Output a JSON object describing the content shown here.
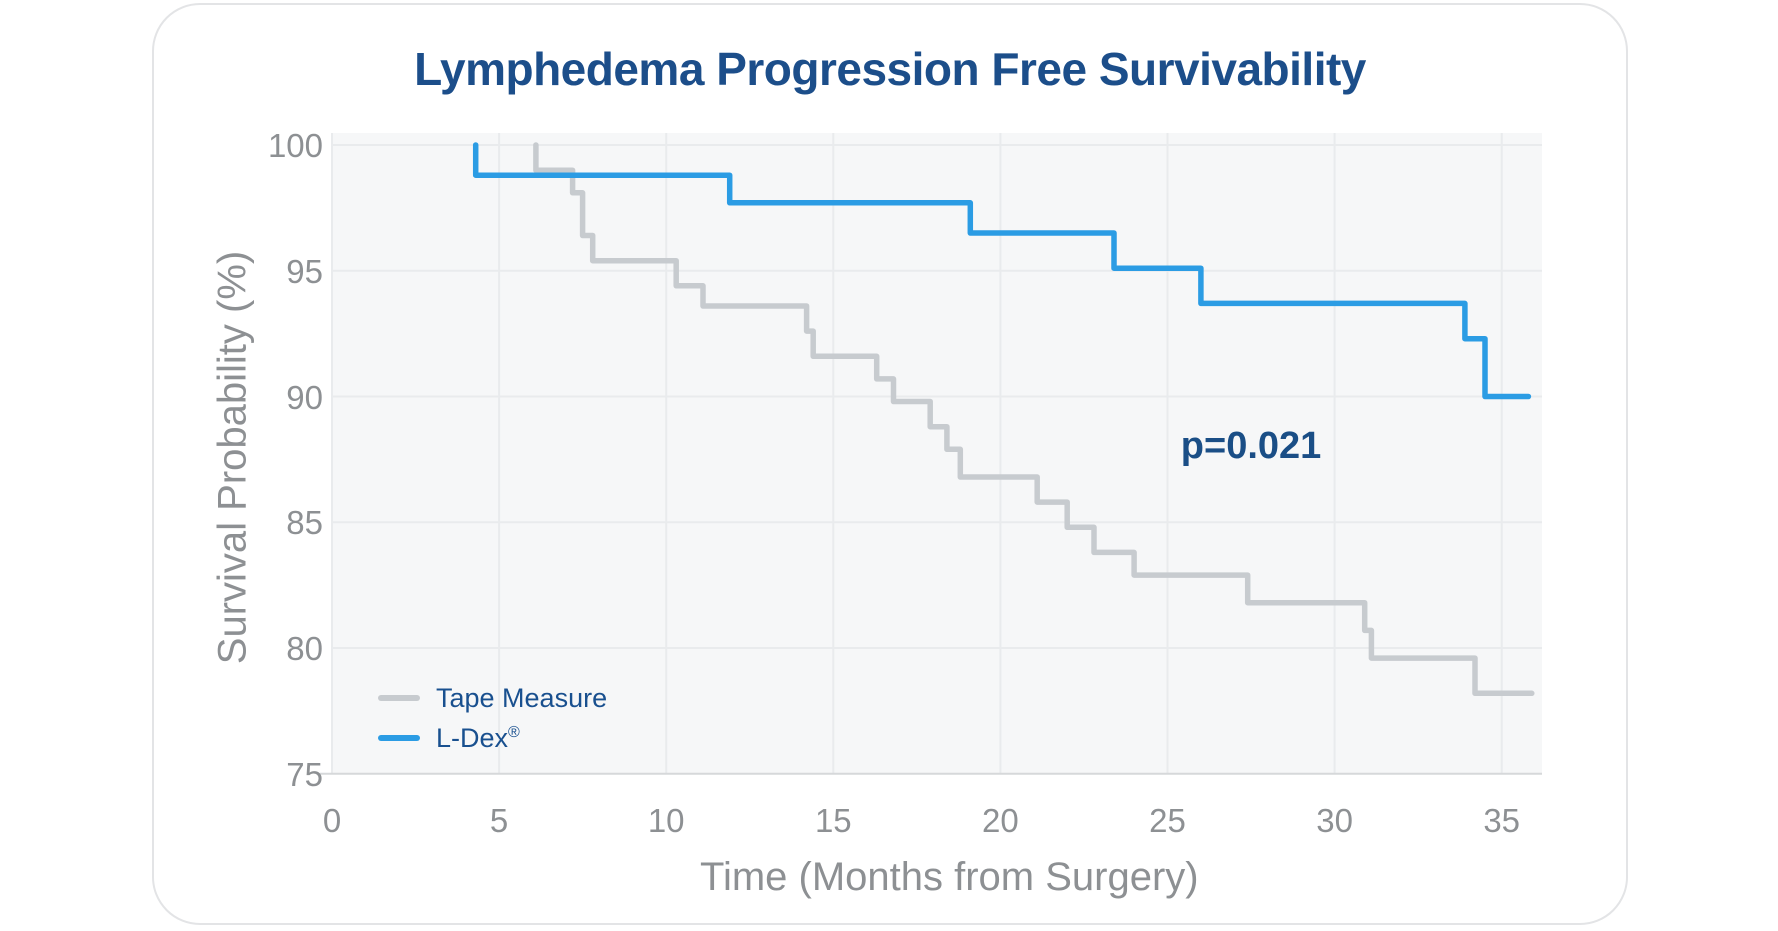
{
  "card": {
    "title": "Lymphedema Progression Free Survivability"
  },
  "colors": {
    "title_navy": "#1C4E8A",
    "accent_blue": "#2B9CE4",
    "line_gray": "#C7CBCF",
    "text_gray": "#8D9093",
    "legend_text_navy": "#19508F",
    "plot_bg": "#F6F7F8",
    "gridline": "#E9EBED",
    "axis_line": "#D6D8DA",
    "card_border": "#E3E4E6"
  },
  "legend": {
    "items": [
      {
        "label": "Tape Measure",
        "suffix": "",
        "color": "#C7CBCF"
      },
      {
        "label": "L-Dex",
        "suffix": "®",
        "color": "#2B9CE4"
      }
    ]
  },
  "chart_data": {
    "type": "line",
    "subtype": "kaplan-meier-step",
    "title": "Lymphedema Progression Free Survivability",
    "xlabel": "Time (Months from Surgery)",
    "ylabel": "Survival Probability (%)",
    "xlim": [
      0,
      36.2
    ],
    "ylim": [
      75,
      100
    ],
    "x_ticks": [
      0,
      5,
      10,
      15,
      20,
      25,
      30,
      35
    ],
    "y_ticks": [
      100,
      95,
      90,
      85,
      80,
      75
    ],
    "grid": true,
    "legend_position": "inside-bottom-left",
    "annotation": {
      "label": "p=0.021",
      "x": 27.5,
      "y": 87.9
    },
    "series": [
      {
        "name": "Tape Measure",
        "color": "#C7CBCF",
        "steps": [
          [
            6.1,
            100
          ],
          [
            6.1,
            99.0
          ],
          [
            7.2,
            98.1
          ],
          [
            7.5,
            96.4
          ],
          [
            7.8,
            95.4
          ],
          [
            10.3,
            94.4
          ],
          [
            11.1,
            93.6
          ],
          [
            14.2,
            92.6
          ],
          [
            14.4,
            91.6
          ],
          [
            16.3,
            90.7
          ],
          [
            16.8,
            89.8
          ],
          [
            17.9,
            88.8
          ],
          [
            18.4,
            87.9
          ],
          [
            18.8,
            86.8
          ],
          [
            21.1,
            85.8
          ],
          [
            22.0,
            84.8
          ],
          [
            22.8,
            83.8
          ],
          [
            24.0,
            82.9
          ],
          [
            27.4,
            81.8
          ],
          [
            30.9,
            80.7
          ],
          [
            31.1,
            79.6
          ],
          [
            34.2,
            78.2
          ],
          [
            35.9,
            78.2
          ]
        ]
      },
      {
        "name": "L-Dex®",
        "color": "#2B9CE4",
        "steps": [
          [
            4.3,
            100
          ],
          [
            4.3,
            98.8
          ],
          [
            11.9,
            97.7
          ],
          [
            19.1,
            96.5
          ],
          [
            23.4,
            95.1
          ],
          [
            26.0,
            93.7
          ],
          [
            33.9,
            92.3
          ],
          [
            34.5,
            90.0
          ],
          [
            35.8,
            90.0
          ]
        ]
      }
    ]
  }
}
